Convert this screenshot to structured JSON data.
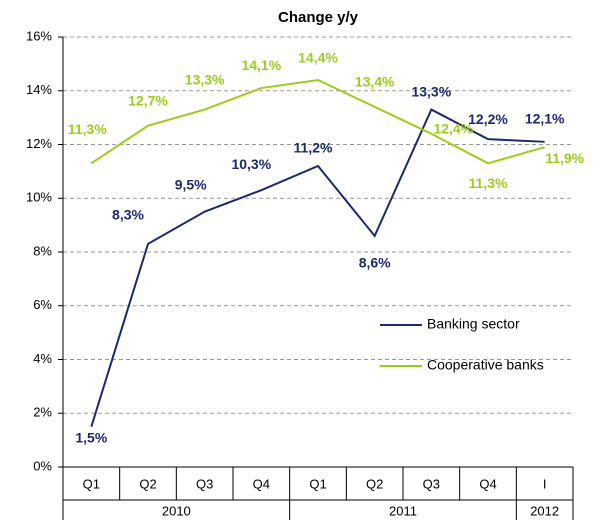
{
  "chart_data": {
    "type": "line",
    "title": "Change y/y",
    "groups": [
      {
        "name": "2010",
        "categories": [
          "Q1",
          "Q2",
          "Q3",
          "Q4"
        ]
      },
      {
        "name": "2011",
        "categories": [
          "Q1",
          "Q2",
          "Q3",
          "Q4"
        ]
      },
      {
        "name": "2012",
        "categories": [
          "I"
        ]
      }
    ],
    "series": [
      {
        "name": "Banking sector",
        "color": "#1a2a6c",
        "values": [
          1.5,
          8.3,
          9.5,
          10.3,
          11.2,
          8.6,
          13.3,
          12.2,
          12.1
        ],
        "value_labels": [
          "1,5%",
          "8,3%",
          "9,5%",
          "10,3%",
          "11,2%",
          "8,6%",
          "13,3%",
          "12,2%",
          "12,1%"
        ]
      },
      {
        "name": "Cooperative banks",
        "color": "#9acd1a",
        "values": [
          11.3,
          12.7,
          13.3,
          14.1,
          14.4,
          13.4,
          12.4,
          11.3,
          11.9
        ],
        "value_labels": [
          "11,3%",
          "12,7%",
          "13,3%",
          "14,1%",
          "14,4%",
          "13,4%",
          "12,4%",
          "11,3%",
          "11,9%"
        ]
      }
    ],
    "ylim": [
      0,
      16
    ],
    "yticks": [
      {
        "value": 0,
        "label": "0%"
      },
      {
        "value": 2,
        "label": "2%"
      },
      {
        "value": 4,
        "label": "4%"
      },
      {
        "value": 6,
        "label": "6%"
      },
      {
        "value": 8,
        "label": "8%"
      },
      {
        "value": 10,
        "label": "10%"
      },
      {
        "value": 12,
        "label": "12%"
      },
      {
        "value": 14,
        "label": "14%"
      },
      {
        "value": 16,
        "label": "16%"
      }
    ],
    "grid": true,
    "legend": "right"
  }
}
